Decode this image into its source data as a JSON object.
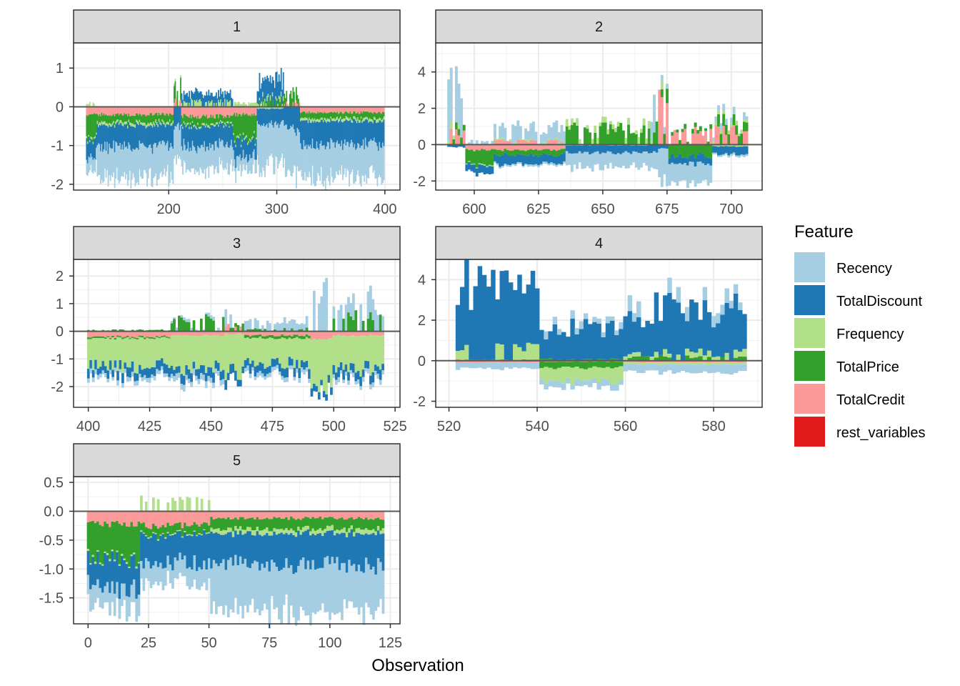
{
  "chart_data": {
    "type": "bar",
    "subtype": "stacked-contribution-by-observation (faceted)",
    "xlabel": "Observation",
    "ylabel": "",
    "grid": true,
    "legend": {
      "title": "Feature",
      "placement": "right",
      "entries": [
        {
          "name": "Recency",
          "color": "#a6cee3"
        },
        {
          "name": "TotalDiscount",
          "color": "#1f78b4"
        },
        {
          "name": "Frequency",
          "color": "#b2df8a"
        },
        {
          "name": "TotalPrice",
          "color": "#33a02c"
        },
        {
          "name": "TotalCredit",
          "color": "#fb9a99"
        },
        {
          "name": "rest_variables",
          "color": "#e31a1c"
        }
      ]
    },
    "panels": [
      {
        "label": "1",
        "xlim": [
          112,
          414
        ],
        "ylim": [
          -2.15,
          1.65
        ],
        "xticks": [
          200,
          300,
          400
        ],
        "yticks": [
          -2,
          -1,
          0,
          1
        ],
        "x_range": [
          124,
          400
        ],
        "segments": [
          {
            "x": [
              124,
              134
            ],
            "neg": {
              "TotalCredit": -0.2,
              "TotalPrice": -0.6,
              "Frequency": -0.05,
              "TotalDiscount": -0.45,
              "Recency": -0.35
            },
            "pos": {
              "Frequency": 0.1
            }
          },
          {
            "x": [
              134,
              205
            ],
            "neg": {
              "TotalCredit": -0.2,
              "TotalPrice": -0.2,
              "Frequency": -0.07,
              "TotalDiscount": -0.55,
              "Recency": -0.8
            },
            "pos": {}
          },
          {
            "x": [
              205,
              212
            ],
            "neg": {
              "TotalDiscount": -0.5,
              "Recency": -0.8
            },
            "pos": {
              "TotalCredit": 0.15,
              "TotalPrice": 0.5,
              "Frequency": 0.05
            }
          },
          {
            "x": [
              212,
              260
            ],
            "neg": {
              "TotalCredit": -0.25,
              "TotalPrice": -0.2,
              "Frequency": -0.05,
              "TotalDiscount": -0.5,
              "Recency": -0.6
            },
            "pos": {
              "TotalDiscount": 0.25,
              "Frequency": 0.15
            }
          },
          {
            "x": [
              260,
              282
            ],
            "neg": {
              "TotalCredit": -0.2,
              "TotalPrice": -0.6,
              "Frequency": -0.05,
              "TotalDiscount": -0.45,
              "Recency": -0.35
            },
            "pos": {
              "Frequency": 0.1
            }
          },
          {
            "x": [
              282,
              307
            ],
            "neg": {
              "Frequency": -0.05,
              "TotalDiscount": -0.4,
              "Recency": -1.1
            },
            "pos": {
              "TotalPrice": 0.2,
              "TotalDiscount": 0.5,
              "Frequency": 0.1
            }
          },
          {
            "x": [
              307,
              322
            ],
            "neg": {
              "TotalDiscount": -0.6,
              "Recency": -1.1
            },
            "pos": {
              "TotalCredit": 0.12,
              "TotalPrice": 0.3
            }
          },
          {
            "x": [
              322,
              400
            ],
            "neg": {
              "TotalCredit": -0.15,
              "TotalPrice": -0.15,
              "Frequency": -0.07,
              "TotalDiscount": -0.6,
              "Recency": -0.85
            },
            "pos": {}
          }
        ]
      },
      {
        "label": "2",
        "xlim": [
          585,
          712
        ],
        "ylim": [
          -2.5,
          5.6
        ],
        "xticks": [
          600,
          625,
          650,
          675,
          700
        ],
        "yticks": [
          -2,
          0,
          2,
          4
        ],
        "x_range": [
          590,
          707
        ],
        "segments": [
          {
            "x": [
              590,
              597
            ],
            "neg": {
              "TotalDiscount": -0.15
            },
            "pos": {
              "TotalCredit": 0.8,
              "TotalPrice": 0.3,
              "Frequency": 0.3,
              "Recency": 2.6
            }
          },
          {
            "x": [
              597,
              608
            ],
            "neg": {
              "TotalCredit": -0.3,
              "TotalPrice": -0.8,
              "Frequency": -0.05,
              "TotalDiscount": -0.4
            },
            "pos": {
              "Recency": 0.2
            }
          },
          {
            "x": [
              608,
              636
            ],
            "neg": {
              "TotalCredit": -0.3,
              "TotalPrice": -0.3,
              "TotalDiscount": -0.5,
              "Recency": -0.1
            },
            "pos": {
              "TotalCredit": 0.2,
              "Frequency": 0.1,
              "Recency": 0.8
            }
          },
          {
            "x": [
              636,
              672
            ],
            "neg": {
              "TotalCredit": -0.05,
              "TotalDiscount": -0.4,
              "Recency": -0.8
            },
            "pos": {
              "TotalPrice": 0.9,
              "Frequency": 0.3
            }
          },
          {
            "x": [
              668,
              672
            ],
            "neg": {
              "TotalDiscount": -0.3
            },
            "pos": {
              "TotalPrice": 1.0,
              "Frequency": 0.3,
              "Recency": 1.5
            }
          },
          {
            "x": [
              672,
              676
            ],
            "neg": {
              "TotalDiscount": -0.2,
              "Recency": -1.8
            },
            "pos": {
              "TotalCredit": 2.6,
              "TotalPrice": 0.6,
              "Frequency": 0.3,
              "Recency": 0.3
            }
          },
          {
            "x": [
              676,
              693
            ],
            "neg": {
              "TotalPrice": -0.6,
              "TotalDiscount": -0.4,
              "Recency": -1.0
            },
            "pos": {
              "TotalCredit": 0.7,
              "TotalPrice": 0.2
            }
          },
          {
            "x": [
              693,
              707
            ],
            "neg": {
              "Frequency": -0.1,
              "TotalDiscount": -0.4,
              "Recency": -0.1
            },
            "pos": {
              "TotalCredit": 0.8,
              "TotalPrice": 0.6,
              "Frequency": 0.2,
              "Recency": 0.3
            }
          }
        ]
      },
      {
        "label": "3",
        "xlim": [
          394,
          527
        ],
        "ylim": [
          -2.75,
          2.6
        ],
        "xticks": [
          400,
          425,
          450,
          475,
          500,
          525
        ],
        "yticks": [
          -2,
          -1,
          0,
          1,
          2
        ],
        "x_range": [
          400,
          521
        ],
        "segments": [
          {
            "x": [
              400,
              434
            ],
            "neg": {
              "TotalCredit": -0.2,
              "TotalPrice": -0.05,
              "Frequency": -1.0,
              "TotalDiscount": -0.3,
              "Recency": -0.15
            },
            "pos": {
              "TotalPrice": 0.05
            }
          },
          {
            "x": [
              434,
              456
            ],
            "neg": {
              "TotalCredit": -0.15,
              "Frequency": -1.2,
              "TotalDiscount": -0.3,
              "Recency": -0.2
            },
            "pos": {
              "TotalPrice": 0.45,
              "Recency": 0.1
            }
          },
          {
            "x": [
              456,
              464
            ],
            "neg": {
              "TotalCredit": -0.1,
              "Frequency": -1.4,
              "TotalDiscount": -0.3
            },
            "pos": {
              "TotalCredit": 0.2,
              "TotalPrice": 0.2,
              "Recency": 0.5
            }
          },
          {
            "x": [
              464,
              491
            ],
            "neg": {
              "TotalCredit": -0.15,
              "TotalPrice": -0.1,
              "Frequency": -0.9,
              "TotalDiscount": -0.3,
              "Recency": -0.15
            },
            "pos": {
              "TotalPrice": 0.1,
              "Recency": 0.3
            }
          },
          {
            "x": [
              491,
              500
            ],
            "neg": {
              "TotalCredit": -0.3,
              "Frequency": -1.6,
              "TotalDiscount": -0.25
            },
            "pos": {
              "Recency": 1.5
            }
          },
          {
            "x": [
              500,
              521
            ],
            "neg": {
              "TotalCredit": -0.15,
              "Frequency": -1.2,
              "TotalDiscount": -0.3,
              "Recency": -0.15
            },
            "pos": {
              "TotalPrice": 0.55,
              "Recency": 0.7
            }
          }
        ]
      },
      {
        "label": "4",
        "xlim": [
          517,
          591
        ],
        "ylim": [
          -2.3,
          5.0
        ],
        "xticks": [
          520,
          540,
          560,
          580
        ],
        "yticks": [
          -2,
          0,
          2,
          4
        ],
        "x_range": [
          522,
          588
        ],
        "segments": [
          {
            "x": [
              522,
              541
            ],
            "neg": {
              "TotalCredit": -0.08,
              "Recency": -0.3
            },
            "pos": {
              "TotalPrice": 0.05,
              "Frequency": 0.65,
              "TotalDiscount": 3.5
            }
          },
          {
            "x": [
              541,
              560
            ],
            "neg": {
              "TotalCredit": -0.05,
              "TotalPrice": -0.3,
              "Frequency": -0.7,
              "Recency": -0.3
            },
            "pos": {
              "TotalPrice": 0.1,
              "TotalDiscount": 1.5,
              "Recency": 0.3
            }
          },
          {
            "x": [
              560,
              588
            ],
            "neg": {
              "TotalCredit": -0.08,
              "Frequency": -0.1,
              "Recency": -0.4
            },
            "pos": {
              "TotalPrice": 0.2,
              "Frequency": 0.3,
              "TotalDiscount": 2.2,
              "Recency": 0.6
            }
          }
        ]
      },
      {
        "label": "5",
        "xlim": [
          -6,
          129
        ],
        "ylim": [
          -1.95,
          0.6
        ],
        "xticks": [
          0,
          25,
          50,
          75,
          100,
          125
        ],
        "yticks": [
          -1.5,
          -1.0,
          -0.5,
          0.0,
          0.5
        ],
        "x_range": [
          0,
          123
        ],
        "segments": [
          {
            "x": [
              0,
              22
            ],
            "neg": {
              "TotalCredit": -0.22,
              "TotalPrice": -0.6,
              "Frequency": -0.03,
              "TotalDiscount": -0.47,
              "Recency": -0.35
            },
            "pos": {}
          },
          {
            "x": [
              22,
              51
            ],
            "neg": {
              "TotalCredit": -0.25,
              "TotalPrice": -0.15,
              "Frequency": -0.02,
              "TotalDiscount": -0.5,
              "Recency": -0.35
            },
            "pos": {
              "Frequency": 0.2
            }
          },
          {
            "x": [
              51,
              123
            ],
            "neg": {
              "TotalCredit": -0.12,
              "TotalPrice": -0.18,
              "Frequency": -0.08,
              "TotalDiscount": -0.55,
              "Recency": -0.8
            },
            "pos": {}
          }
        ]
      }
    ]
  }
}
